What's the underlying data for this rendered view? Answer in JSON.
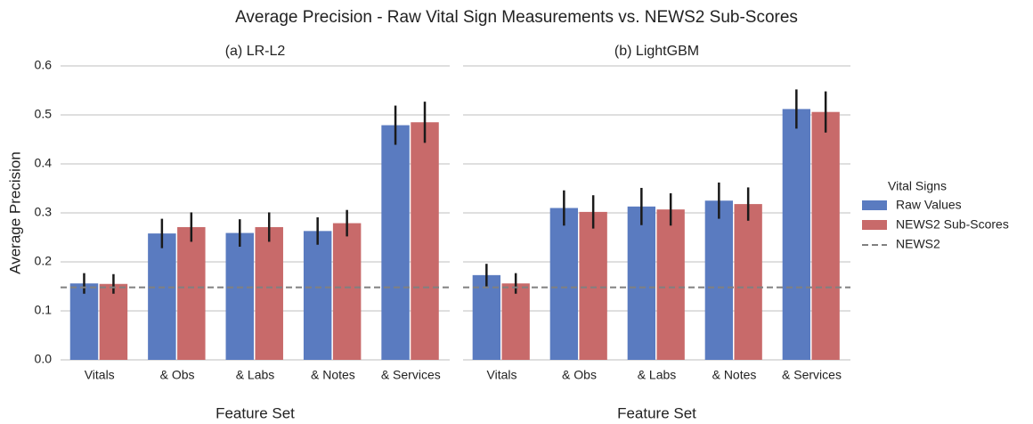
{
  "title": "Average Precision - Raw Vital Sign Measurements vs. NEWS2 Sub-Scores",
  "legend": {
    "title": "Vital Signs",
    "position": "right"
  },
  "chart_data": [
    {
      "type": "bar",
      "title": "(a) LR-L2",
      "xlabel": "Feature Set",
      "ylabel": "Average Precision",
      "categories": [
        "Vitals",
        "& Obs",
        "& Labs",
        "& Notes",
        "& Services"
      ],
      "series": [
        {
          "name": "Raw Values",
          "color": "#5a7bc0",
          "values": [
            0.156,
            0.258,
            0.259,
            0.263,
            0.479
          ],
          "errors": [
            0.021,
            0.03,
            0.028,
            0.028,
            0.04
          ]
        },
        {
          "name": "NEWS2 Sub-Scores",
          "color": "#c86a6a",
          "values": [
            0.155,
            0.271,
            0.271,
            0.279,
            0.485
          ],
          "errors": [
            0.02,
            0.03,
            0.03,
            0.027,
            0.042
          ]
        }
      ],
      "reference_line": {
        "name": "NEWS2",
        "value": 0.148,
        "color": "#808080",
        "style": "dashed"
      },
      "ylim": [
        0,
        0.6
      ],
      "yticks": [
        {
          "value": 0,
          "label": "0.0"
        },
        0.1,
        0.2,
        0.3,
        0.4,
        0.5,
        0.6
      ],
      "grid": true
    },
    {
      "type": "bar",
      "title": "(b) LightGBM",
      "xlabel": "Feature Set",
      "categories": [
        "Vitals",
        "& Obs",
        "& Labs",
        "& Notes",
        "& Services"
      ],
      "series": [
        {
          "name": "Raw Values",
          "color": "#5a7bc0",
          "values": [
            0.173,
            0.31,
            0.313,
            0.325,
            0.512
          ],
          "errors": [
            0.023,
            0.036,
            0.038,
            0.037,
            0.04
          ]
        },
        {
          "name": "NEWS2 Sub-Scores",
          "color": "#c86a6a",
          "values": [
            0.156,
            0.302,
            0.307,
            0.318,
            0.506
          ],
          "errors": [
            0.021,
            0.034,
            0.033,
            0.034,
            0.042
          ]
        }
      ],
      "reference_line": {
        "name": "NEWS2",
        "value": 0.148,
        "color": "#808080",
        "style": "dashed"
      },
      "ylim": [
        0,
        0.6
      ],
      "sharey": true,
      "grid": true
    }
  ]
}
